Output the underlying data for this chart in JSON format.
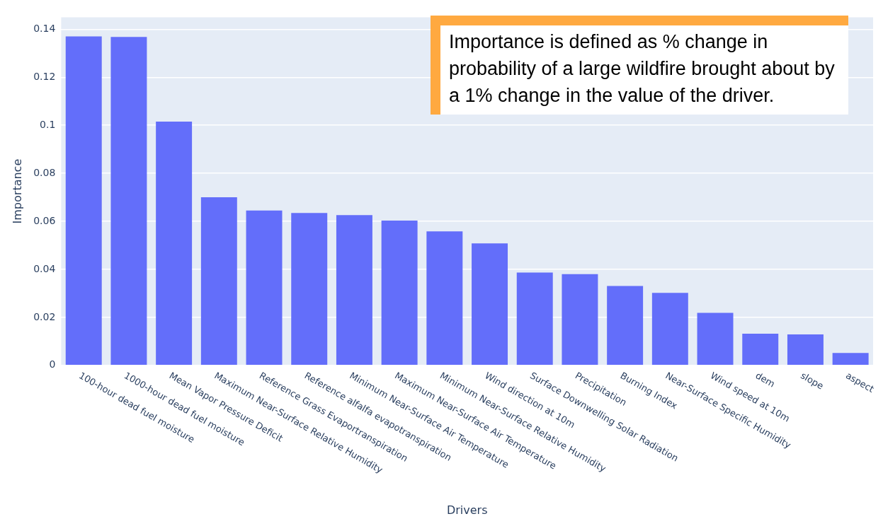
{
  "chart_data": {
    "type": "bar",
    "categories": [
      "100-hour dead fuel moisture",
      "1000-hour dead fuel moisture",
      "Mean Vapor Pressure Deficit",
      "Maximum Near-Surface Relative Humidity",
      "Reference Grass Evaportranspiration",
      "Reference alfalfa evapotranspiration",
      "Minimum Near-Surface Air Temperature",
      "Maximum Near-Surface Air Temperature",
      "Minimum Near-Surface Relative Humidity",
      "Wind direction at 10m",
      "Surface Downwelling Solar Radiation",
      "Precipitation",
      "Burning Index",
      "Near-Surface Specific Humidity",
      "Wind speed at 10m",
      "dem",
      "slope",
      "aspect"
    ],
    "values": [
      0.137,
      0.1368,
      0.1015,
      0.07,
      0.0645,
      0.0635,
      0.0626,
      0.0603,
      0.0558,
      0.0508,
      0.0387,
      0.038,
      0.0331,
      0.0302,
      0.0219,
      0.0132,
      0.0129,
      0.0052
    ],
    "color": "#636efa",
    "xlabel": "Drivers",
    "ylabel": "Importance",
    "ylim": [
      0,
      0.145
    ],
    "yticks": [
      0,
      0.02,
      0.04,
      0.06,
      0.08,
      0.1,
      0.12,
      0.14
    ],
    "grid": "y",
    "annotations": [
      "Importance is defined as % change in probability of a large wildfire brought about by a 1% change in the value of the driver."
    ]
  }
}
